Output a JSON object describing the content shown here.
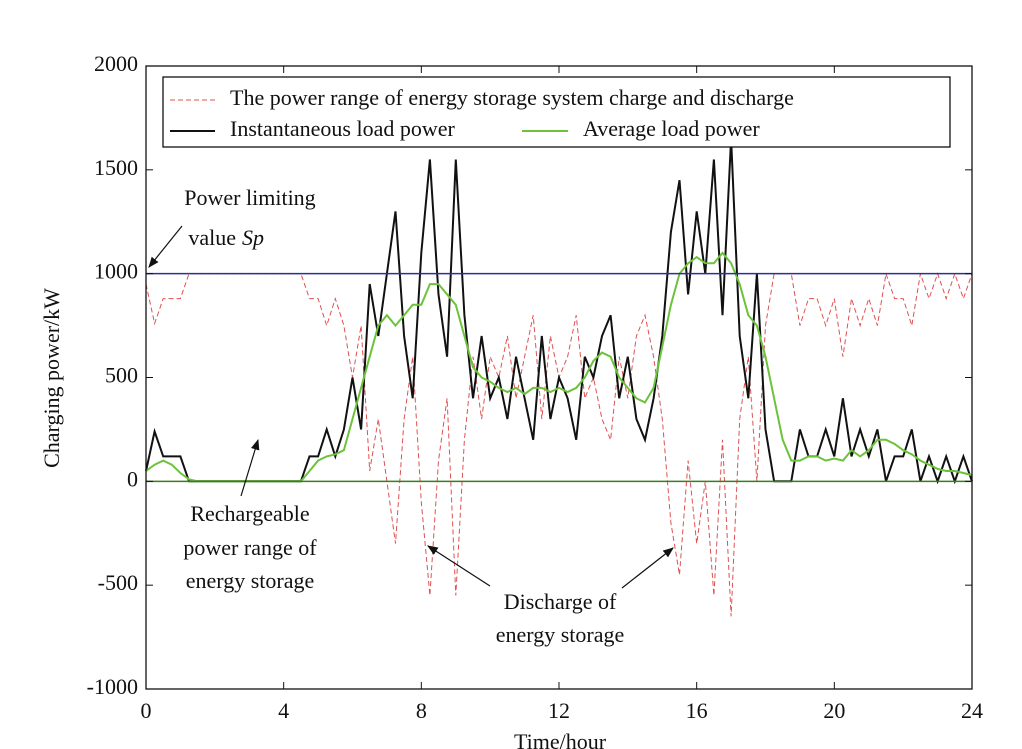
{
  "chart_data": {
    "type": "line",
    "xlabel": "Time/hour",
    "ylabel": "Charging power/kW",
    "xlim": [
      0,
      24
    ],
    "ylim": [
      -1000,
      2000
    ],
    "xticks": [
      0,
      4,
      8,
      12,
      16,
      20,
      24
    ],
    "yticks": [
      -1000,
      -500,
      0,
      500,
      1000,
      1500,
      2000
    ],
    "x": [
      0,
      0.25,
      0.5,
      0.75,
      1,
      1.25,
      1.5,
      1.75,
      2,
      2.25,
      2.5,
      2.75,
      3,
      3.25,
      3.5,
      3.75,
      4,
      4.25,
      4.5,
      4.75,
      5,
      5.25,
      5.5,
      5.75,
      6,
      6.25,
      6.5,
      6.75,
      7,
      7.25,
      7.5,
      7.75,
      8,
      8.25,
      8.5,
      8.75,
      9,
      9.25,
      9.5,
      9.75,
      10,
      10.25,
      10.5,
      10.75,
      11,
      11.25,
      11.5,
      11.75,
      12,
      12.25,
      12.5,
      12.75,
      13,
      13.25,
      13.5,
      13.75,
      14,
      14.25,
      14.5,
      14.75,
      15,
      15.25,
      15.5,
      15.75,
      16,
      16.25,
      16.5,
      16.75,
      17,
      17.25,
      17.5,
      17.75,
      18,
      18.25,
      18.5,
      18.75,
      19,
      19.25,
      19.5,
      19.75,
      20,
      20.25,
      20.5,
      20.75,
      21,
      21.25,
      21.5,
      21.75,
      22,
      22.25,
      22.5,
      22.75,
      23,
      23.25,
      23.5,
      23.75,
      24
    ],
    "series": [
      {
        "name": "The power range of energy storage system charge and discharge",
        "color": "#e05050",
        "dash": true,
        "values": [
          950,
          760,
          880,
          880,
          880,
          1000,
          1000,
          1000,
          1000,
          1000,
          1000,
          1000,
          1000,
          1000,
          1000,
          1000,
          1000,
          1000,
          1000,
          880,
          880,
          750,
          880,
          750,
          500,
          750,
          50,
          300,
          0,
          -300,
          300,
          600,
          -100,
          -550,
          100,
          400,
          -550,
          200,
          600,
          300,
          600,
          500,
          700,
          400,
          600,
          800,
          300,
          700,
          500,
          600,
          800,
          400,
          500,
          300,
          200,
          600,
          400,
          700,
          800,
          600,
          300,
          -200,
          -450,
          100,
          -300,
          0,
          -550,
          200,
          -650,
          300,
          600,
          0,
          750,
          1000,
          1000,
          1000,
          750,
          880,
          880,
          750,
          880,
          600,
          880,
          750,
          880,
          750,
          1000,
          880,
          880,
          750,
          1000,
          880,
          1000,
          880,
          1000,
          880,
          1000
        ]
      },
      {
        "name": "Instantaneous load power",
        "color": "#111111",
        "dash": false,
        "values": [
          50,
          240,
          120,
          120,
          120,
          0,
          0,
          0,
          0,
          0,
          0,
          0,
          0,
          0,
          0,
          0,
          0,
          0,
          0,
          120,
          120,
          250,
          120,
          250,
          500,
          250,
          950,
          700,
          1000,
          1300,
          700,
          400,
          1100,
          1550,
          900,
          600,
          1550,
          800,
          400,
          700,
          400,
          500,
          300,
          600,
          400,
          200,
          700,
          300,
          500,
          400,
          200,
          600,
          500,
          700,
          800,
          400,
          600,
          300,
          200,
          400,
          700,
          1200,
          1450,
          900,
          1300,
          1000,
          1550,
          800,
          1650,
          700,
          400,
          1000,
          250,
          0,
          0,
          0,
          250,
          120,
          120,
          250,
          120,
          400,
          120,
          250,
          120,
          250,
          0,
          120,
          120,
          250,
          0,
          120,
          0,
          120,
          0,
          120,
          0
        ]
      },
      {
        "name": "Average load power",
        "color": "#6cc23a",
        "dash": false,
        "values": [
          50,
          80,
          100,
          80,
          40,
          10,
          0,
          0,
          0,
          0,
          0,
          0,
          0,
          0,
          0,
          0,
          0,
          0,
          0,
          50,
          100,
          120,
          130,
          150,
          300,
          450,
          600,
          750,
          800,
          750,
          800,
          850,
          850,
          950,
          950,
          900,
          850,
          700,
          550,
          500,
          480,
          450,
          430,
          450,
          420,
          450,
          450,
          430,
          450,
          430,
          450,
          500,
          580,
          620,
          600,
          500,
          450,
          400,
          380,
          450,
          650,
          850,
          1000,
          1050,
          1080,
          1050,
          1050,
          1100,
          1050,
          950,
          800,
          750,
          600,
          400,
          200,
          100,
          100,
          120,
          120,
          100,
          110,
          100,
          150,
          120,
          150,
          200,
          200,
          180,
          150,
          130,
          100,
          80,
          60,
          50,
          50,
          40,
          30
        ]
      }
    ],
    "hlines": [
      {
        "value": 1000,
        "color": "#2a2f9a"
      },
      {
        "value": 0,
        "color": "#3a7d1e"
      }
    ],
    "annotations": {
      "power_limit": [
        "Power limiting",
        "value",
        "Sp"
      ],
      "rechargeable": [
        "Rechargeable",
        "power range of",
        "energy storage"
      ],
      "discharge": [
        "Discharge of",
        "energy storage"
      ]
    }
  }
}
